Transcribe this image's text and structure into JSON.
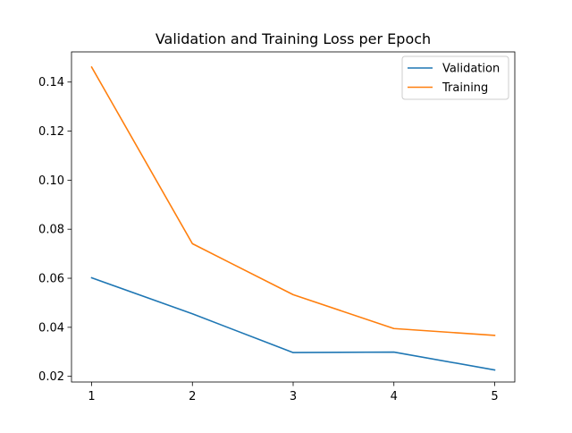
{
  "chart_data": {
    "type": "line",
    "title": "Validation and Training Loss per Epoch",
    "xlabel": "",
    "ylabel": "",
    "x": [
      1,
      2,
      3,
      4,
      5
    ],
    "x_ticks": [
      "1",
      "2",
      "3",
      "4",
      "5"
    ],
    "y_ticks": [
      "0.02",
      "0.04",
      "0.06",
      "0.08",
      "0.10",
      "0.12",
      "0.14"
    ],
    "xlim": [
      0.8,
      5.2
    ],
    "ylim": [
      0.0177,
      0.1523
    ],
    "grid": false,
    "legend_position": "upper right",
    "series": [
      {
        "name": "Validation",
        "color": "#1f77b4",
        "values": [
          0.0602,
          0.0455,
          0.0297,
          0.0299,
          0.0226
        ]
      },
      {
        "name": "Training",
        "color": "#ff7f0e",
        "values": [
          0.1461,
          0.0741,
          0.0533,
          0.0395,
          0.0367
        ]
      }
    ]
  }
}
